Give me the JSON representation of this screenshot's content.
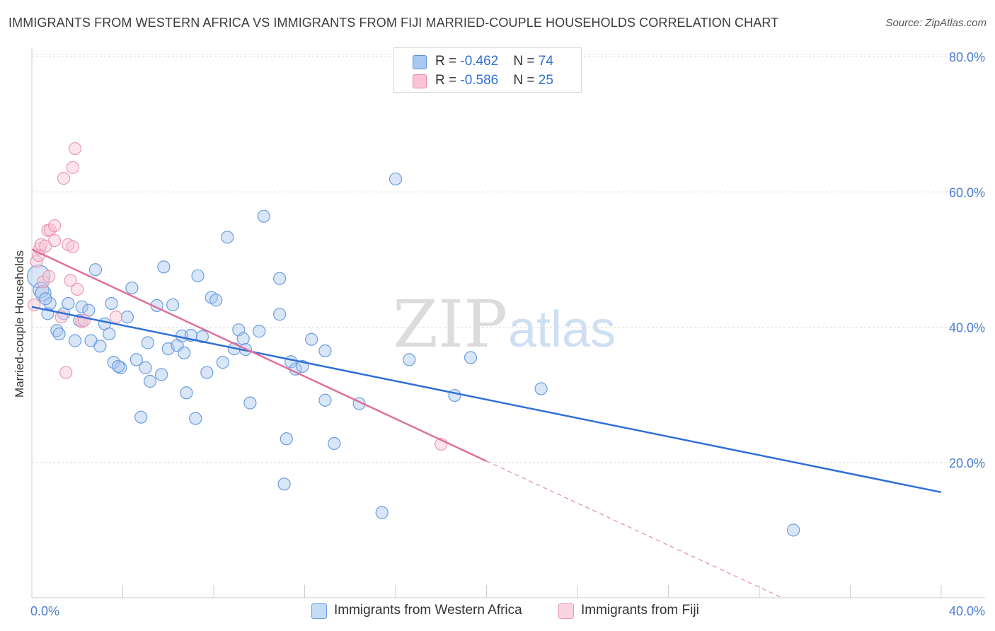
{
  "title": "IMMIGRANTS FROM WESTERN AFRICA VS IMMIGRANTS FROM FIJI MARRIED-COUPLE HOUSEHOLDS CORRELATION CHART",
  "source": "Source: ZipAtlas.com",
  "watermark": {
    "zip": "ZIP",
    "atlas": "atlas"
  },
  "legend": {
    "r_label": "R = ",
    "n_label": "N = ",
    "rows": [
      {
        "r": "-0.462",
        "n": "74",
        "color": "#a8c8f0",
        "border": "#5b8fd8"
      },
      {
        "r": "-0.586",
        "n": "25",
        "color": "#f8c3d3",
        "border": "#e48aa8"
      }
    ]
  },
  "bottom_legend": {
    "items": [
      {
        "label": "Immigrants from Western Africa",
        "color": "#c5dcf7",
        "border": "#6b9ddf"
      },
      {
        "label": "Immigrants from Fiji",
        "color": "#fbd3df",
        "border": "#e99ab5"
      }
    ]
  },
  "chart_data": {
    "type": "scatter",
    "title": "IMMIGRANTS FROM WESTERN AFRICA VS IMMIGRANTS FROM FIJI MARRIED-COUPLE HOUSEHOLDS CORRELATION CHART",
    "xlabel": "",
    "ylabel": "Married-couple Households",
    "xlim": [
      0,
      40
    ],
    "ylim": [
      0,
      80
    ],
    "x_ticks": [
      "0.0%",
      "40.0%"
    ],
    "y_ticks": [
      {
        "value": 80,
        "label": "80.0%"
      },
      {
        "value": 60,
        "label": "60.0%"
      },
      {
        "value": 40,
        "label": "40.0%"
      },
      {
        "value": 20,
        "label": "20.0%"
      }
    ],
    "grid": true,
    "series": [
      {
        "name": "Immigrants from Western Africa",
        "color": "#6b9ddf",
        "fill": "rgba(170,200,240,0.45)",
        "trend": {
          "x": [
            0.0,
            40.0
          ],
          "y": [
            43.0,
            15.6
          ],
          "color": "#2f6fd6"
        },
        "points": [
          [
            0.3,
            47.5
          ],
          [
            0.4,
            45.5
          ],
          [
            0.5,
            45.0
          ],
          [
            0.7,
            42.0
          ],
          [
            0.8,
            43.5
          ],
          [
            1.1,
            39.5
          ],
          [
            1.2,
            39.0
          ],
          [
            1.4,
            42.0
          ],
          [
            1.6,
            43.5
          ],
          [
            1.9,
            38.0
          ],
          [
            2.1,
            41.0
          ],
          [
            2.2,
            43.0
          ],
          [
            2.5,
            42.5
          ],
          [
            2.6,
            38.0
          ],
          [
            2.8,
            48.5
          ],
          [
            3.0,
            37.2
          ],
          [
            3.2,
            40.5
          ],
          [
            3.4,
            39.0
          ],
          [
            3.5,
            43.5
          ],
          [
            3.6,
            34.8
          ],
          [
            3.9,
            34.0
          ],
          [
            3.8,
            34.2
          ],
          [
            4.2,
            41.5
          ],
          [
            4.4,
            45.8
          ],
          [
            4.6,
            35.2
          ],
          [
            4.8,
            26.7
          ],
          [
            5.0,
            34.0
          ],
          [
            5.1,
            37.7
          ],
          [
            5.2,
            32.0
          ],
          [
            5.5,
            43.2
          ],
          [
            5.7,
            33.0
          ],
          [
            5.8,
            48.9
          ],
          [
            6.0,
            36.8
          ],
          [
            6.2,
            43.3
          ],
          [
            6.4,
            37.3
          ],
          [
            6.6,
            38.7
          ],
          [
            6.7,
            36.2
          ],
          [
            6.8,
            30.3
          ],
          [
            7.0,
            38.8
          ],
          [
            7.2,
            26.5
          ],
          [
            7.3,
            47.6
          ],
          [
            7.5,
            38.6
          ],
          [
            7.7,
            33.3
          ],
          [
            7.9,
            44.4
          ],
          [
            8.1,
            44.0
          ],
          [
            8.4,
            34.8
          ],
          [
            8.6,
            53.3
          ],
          [
            8.9,
            36.8
          ],
          [
            9.1,
            39.6
          ],
          [
            9.3,
            38.3
          ],
          [
            9.4,
            36.7
          ],
          [
            9.6,
            28.8
          ],
          [
            10.0,
            39.4
          ],
          [
            10.2,
            56.4
          ],
          [
            10.9,
            47.2
          ],
          [
            10.9,
            41.9
          ],
          [
            11.1,
            16.8
          ],
          [
            11.2,
            23.5
          ],
          [
            11.4,
            34.9
          ],
          [
            11.6,
            33.8
          ],
          [
            11.9,
            34.2
          ],
          [
            12.3,
            38.2
          ],
          [
            12.9,
            29.2
          ],
          [
            12.9,
            36.5
          ],
          [
            13.3,
            22.8
          ],
          [
            14.4,
            28.7
          ],
          [
            15.4,
            12.6
          ],
          [
            16.0,
            61.9
          ],
          [
            16.6,
            35.2
          ],
          [
            18.6,
            29.9
          ],
          [
            19.3,
            35.5
          ],
          [
            22.4,
            30.9
          ],
          [
            33.5,
            10.0
          ],
          [
            0.6,
            44.2
          ]
        ]
      },
      {
        "name": "Immigrants from Fiji",
        "color": "#e99ab5",
        "fill": "rgba(248,195,211,0.45)",
        "trend": {
          "x": [
            0.0,
            20.0
          ],
          "y": [
            51.5,
            20.2
          ],
          "color": "#e0709a"
        },
        "trend_dashed": {
          "x": [
            20.0,
            33.0
          ],
          "y": [
            20.2,
            0.0
          ]
        },
        "points": [
          [
            0.1,
            43.3
          ],
          [
            0.2,
            49.7
          ],
          [
            0.3,
            50.6
          ],
          [
            0.35,
            51.6
          ],
          [
            0.4,
            52.2
          ],
          [
            0.5,
            46.7
          ],
          [
            0.6,
            52.0
          ],
          [
            0.7,
            54.3
          ],
          [
            0.75,
            47.5
          ],
          [
            0.8,
            54.4
          ],
          [
            1.0,
            55.0
          ],
          [
            1.0,
            52.8
          ],
          [
            1.3,
            41.5
          ],
          [
            1.4,
            62.0
          ],
          [
            1.5,
            33.3
          ],
          [
            1.6,
            52.2
          ],
          [
            1.7,
            46.9
          ],
          [
            1.8,
            51.9
          ],
          [
            1.8,
            63.6
          ],
          [
            1.9,
            66.4
          ],
          [
            2.0,
            45.6
          ],
          [
            2.2,
            40.8
          ],
          [
            2.3,
            41.0
          ],
          [
            3.7,
            41.5
          ],
          [
            18.0,
            22.7
          ]
        ]
      }
    ]
  }
}
